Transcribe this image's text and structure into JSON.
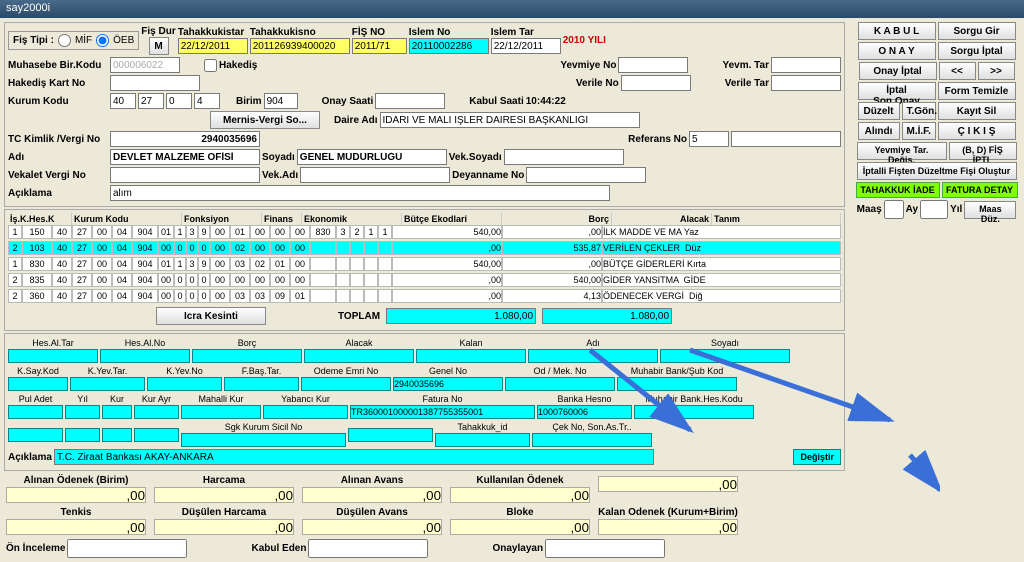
{
  "title": "say2000i",
  "header": {
    "fisTipi": "Fiş Tipi :",
    "mif": "MİF",
    "oeb": "ÖEB",
    "fisDur": "Fiş Dur",
    "fisDurBtn": "M",
    "tahakkukIstar": "Tahakkukistar",
    "tahakkukIstarVal": "22/12/2011",
    "tahakkukIsno": "Tahakkukisno",
    "tahakkukIsnoVal": "201126939400020",
    "fisNo": "FİŞ NO",
    "fisNoVal": "2011/71",
    "islemNo": "Islem No",
    "islemNoVal": "20110002286",
    "islemTar": "Islem Tar",
    "islemTarVal": "22/12/2011",
    "yili": "2010 YILI",
    "muhasebeBirKodu": "Muhasebe Bir.Kodu",
    "muhasebeBirKoduVal": "000006022",
    "hakedis": "Hakediş",
    "hakedisKartNo": "Hakediş Kart No",
    "kurumKodu": "Kurum Kodu",
    "kk1": "40",
    "kk2": "27",
    "kk3": "0",
    "kk4": "4",
    "birim": "Birim",
    "birimVal": "904",
    "yevmiyeNo": "Yevmiye No",
    "verileNo": "Verile No",
    "onaySaati": "Onay Saati",
    "yevmTar": "Yevm. Tar",
    "verileTar": "Verile Tar",
    "kabulSaati": "Kabul Saati",
    "kabulSaatiVal": "10:44:22",
    "daireAdi": "Daire Adı",
    "daireAdiVal": "İDARİ VE MALİ İŞLER DAİRESİ BAŞKANLIĞI",
    "mernis": "Mernis-Vergi  So...",
    "tcKimlik": "TC Kimlik /Vergi No",
    "tcKimlikVal": "2940035696",
    "referansNo": "Referans No",
    "referansVal": "5",
    "adi": "Adı",
    "adiVal": "DEVLET MALZEME OFİSİ",
    "soyadi": "Soyadı",
    "soyadiVal": "GENEL MÜDÜRLÜĞÜ",
    "vekSoyadi": "Vek.Soyadı",
    "vekaletVergiNo": "Vekalet Vergi No",
    "vekAdi": "Vek.Adı",
    "deyannameNo": "Deyanname No",
    "aciklama": "Açıklama",
    "aciklamaVal": "alım"
  },
  "buttons": {
    "kabul": "K A B U L",
    "sorguGir": "Sorgu Gir",
    "onay": "O N A Y",
    "sorguIptal": "Sorgu İptal",
    "onayIptal": "Onay İptal",
    "prev": "<<",
    "next": ">>",
    "iptalSonOnay": "İptal Son.Onay",
    "formTemizle": "Form Temizle",
    "duzelt": "Düzelt",
    "tgon": "T.Gön.",
    "kayitSil": "Kayıt Sil",
    "alindi": "Alındı",
    "mif": "M.İ.F.",
    "cikis": "Ç I K I Ş",
    "yevmiyeTarDegis": "Yevmiye Tar. Değiş.",
    "bdFisIptal": "(B, D) FİŞ İPTL",
    "iptalliFis": "İptalli Fişten Düzeltme Fişi Oluştur",
    "tahakkukIade": "TAHAKKUK  İADE",
    "faturaDetay": "FATURA DETAY",
    "maas": "Maaş",
    "ay": "Ay",
    "yil": "Yıl",
    "maasDuz": "Maas Düz."
  },
  "grid": {
    "headers": [
      "İş.K.Hes.K",
      "Kurum Kodu",
      "Fonksiyon",
      "Finans",
      "Ekonomik",
      "Bütçe  Ekodlari",
      "Borç",
      "Alacak",
      "Tanım"
    ],
    "rows": [
      {
        "c": [
          "1",
          "150",
          "40",
          "27",
          "00",
          "04",
          "904",
          "01",
          "1",
          "3",
          "9",
          "00",
          "01",
          "00",
          "00",
          "00",
          "830",
          "3",
          "2",
          "1",
          "1"
        ],
        "borc": "540,00",
        "alacak": ",00",
        "tanim": "İLK MADDE VE MA Yaz",
        "hl": false
      },
      {
        "c": [
          "2",
          "103",
          "40",
          "27",
          "00",
          "04",
          "904",
          "00",
          "0",
          "0",
          "0",
          "00",
          "02",
          "00",
          "00",
          "00",
          "",
          "",
          "",
          "",
          ""
        ],
        "borc": ",00",
        "alacak": "535,87",
        "tanim": "VERİLEN ÇEKLER  Düz",
        "hl": true
      },
      {
        "c": [
          "1",
          "830",
          "40",
          "27",
          "00",
          "04",
          "904",
          "01",
          "1",
          "3",
          "9",
          "00",
          "03",
          "02",
          "01",
          "00",
          "",
          "",
          "",
          "",
          ""
        ],
        "borc": "540,00",
        "alacak": ",00",
        "tanim": "BÜTÇE GİDERLERİ Kırta",
        "hl": false
      },
      {
        "c": [
          "2",
          "835",
          "40",
          "27",
          "00",
          "04",
          "904",
          "00",
          "0",
          "0",
          "0",
          "00",
          "00",
          "00",
          "00",
          "00",
          "",
          "",
          "",
          "",
          ""
        ],
        "borc": ",00",
        "alacak": "540,00",
        "tanim": "GİDER YANSITMA  GİDE",
        "hl": false
      },
      {
        "c": [
          "2",
          "360",
          "40",
          "27",
          "00",
          "04",
          "904",
          "00",
          "0",
          "0",
          "0",
          "00",
          "03",
          "03",
          "09",
          "01",
          "",
          "",
          "",
          "",
          ""
        ],
        "borc": ",00",
        "alacak": "4,13",
        "tanim": "ÖDENECEK VERGİ  Diğ",
        "hl": false
      }
    ],
    "icraKesinti": "Icra Kesinti",
    "toplam": "TOPLAM",
    "toplamBorc": "1.080,00",
    "toplamAlacak": "1.080,00"
  },
  "mid": {
    "labels1": [
      "Hes.Al.Tar",
      "Hes.Al.No",
      "Borç",
      "Alacak",
      "Kalan",
      "Adı",
      "Soyadı"
    ],
    "labels2": [
      "K.Say.Kod",
      "K.Yev.Tar.",
      "K.Yev.No",
      "F.Baş.Tar.",
      "Odeme Emri No",
      "Genel No",
      "Od / Mek. No",
      "Muhabir Bank/Şub Kod"
    ],
    "genelNoVal": "2940035696",
    "labels3": [
      "Pul Adet",
      "Yıl",
      "Kur",
      "Kur Ayr",
      "Mahalli Kur",
      "Yabancı Kur",
      "Fatura No",
      "Banka Hesno",
      "Muhabir Bank.Hes.Kodu"
    ],
    "faturaNoVal": "TR360001000001387755355001",
    "bankaHesnoVal": "1000760006",
    "labels4": [
      "",
      "",
      "",
      "",
      "Sgk Kurum Sicil No",
      "",
      "Tahakkuk_id",
      "Çek No, Son.As.Tr.."
    ],
    "aciklama2": "Açıklama",
    "aciklama2Val": "T.C. Ziraat Bankası AKAY-ANKARA",
    "degistir": "Değiştir"
  },
  "bottom": {
    "col1": "Alınan Ödenek (Birim)",
    "col2": "Harcama",
    "col3": "Alınan Avans",
    "col4": "Kullanılan  Ödenek",
    "col5": "",
    "r2c1": "Tenkis",
    "r2c2": "Düşülen Harcama",
    "r2c3": "Düşülen Avans",
    "r2c4": "Bloke",
    "r2c5": "Kalan Odenek (Kurum+Birim)",
    "val": ",00",
    "onInceleme": "Ön İnceleme",
    "kabulEden": "Kabul Eden",
    "onaylayan": "Onaylayan"
  }
}
